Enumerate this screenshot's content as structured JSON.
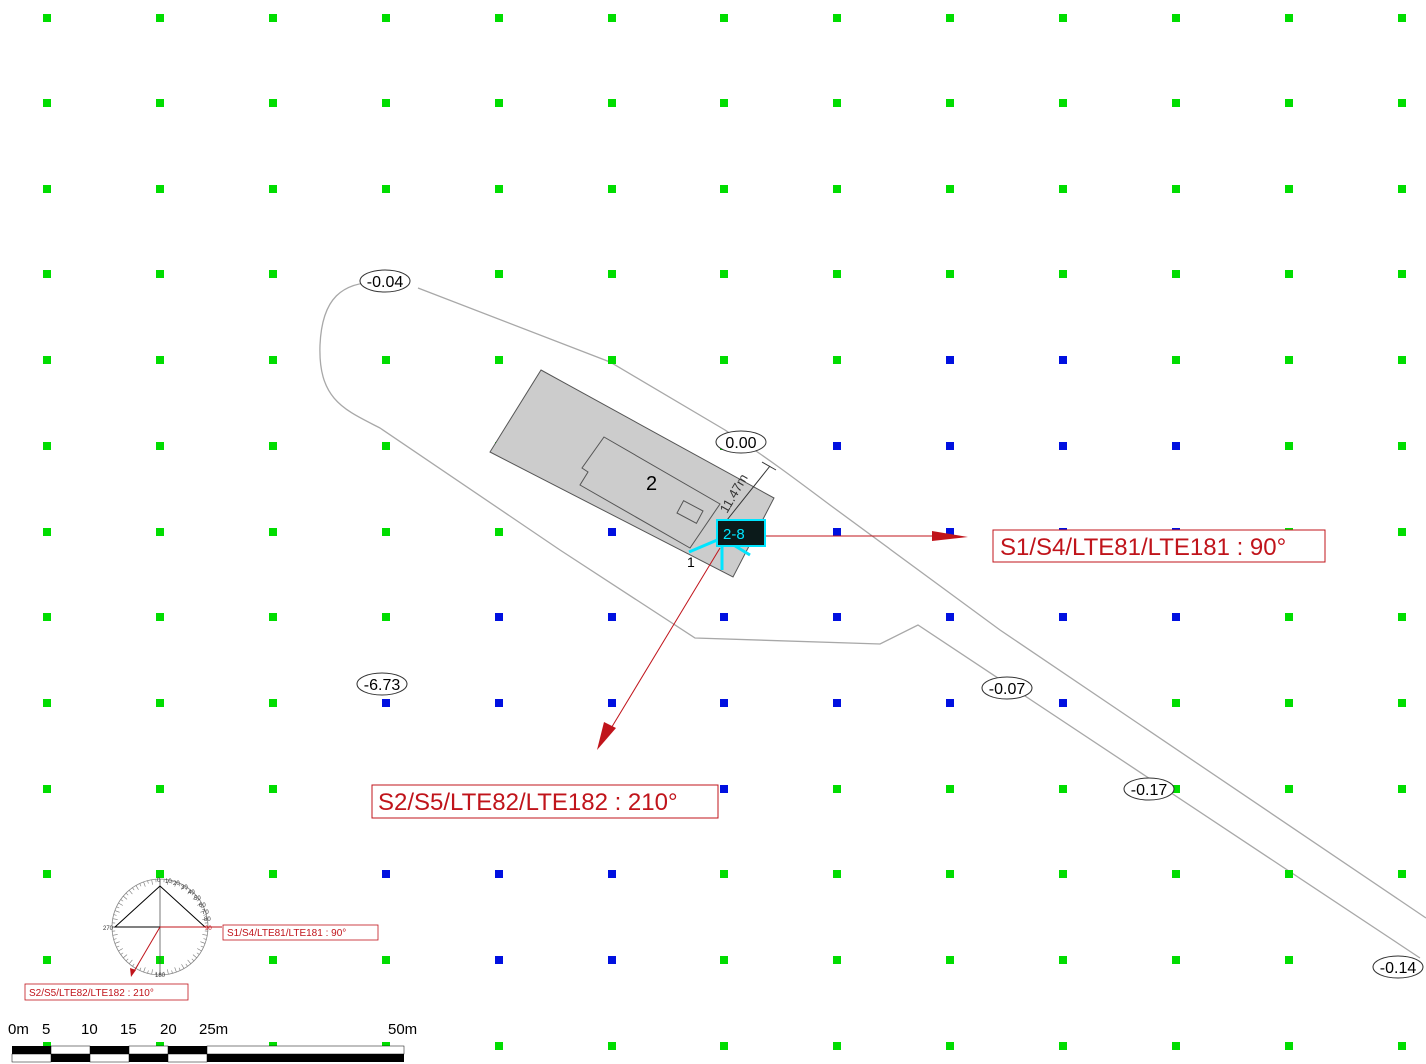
{
  "grid": {
    "legend": {
      "green": "#00dd00",
      "blue": "#0010e0"
    },
    "blue_points": [
      [
        8,
        4
      ],
      [
        9,
        4
      ],
      [
        7,
        5
      ],
      [
        8,
        5
      ],
      [
        9,
        5
      ],
      [
        10,
        5
      ],
      [
        5,
        6
      ],
      [
        7,
        6
      ],
      [
        8,
        6
      ],
      [
        9,
        6
      ],
      [
        10,
        6
      ],
      [
        4,
        7
      ],
      [
        5,
        7
      ],
      [
        6,
        7
      ],
      [
        7,
        7
      ],
      [
        8,
        7
      ],
      [
        9,
        7
      ],
      [
        10,
        7
      ],
      [
        3,
        8
      ],
      [
        4,
        8
      ],
      [
        5,
        8
      ],
      [
        6,
        8
      ],
      [
        7,
        8
      ],
      [
        8,
        8
      ],
      [
        9,
        8
      ],
      [
        4,
        9
      ],
      [
        5,
        9
      ],
      [
        6,
        9
      ],
      [
        3,
        10
      ],
      [
        4,
        10
      ],
      [
        5,
        10
      ],
      [
        4,
        11
      ],
      [
        5,
        11
      ]
    ]
  },
  "elevation_labels": [
    {
      "id": "elev-a",
      "text": "-0.04"
    },
    {
      "id": "elev-b",
      "text": "0.00"
    },
    {
      "id": "elev-c",
      "text": "-6.73"
    },
    {
      "id": "elev-d",
      "text": "-0.07"
    },
    {
      "id": "elev-e",
      "text": "-0.17"
    },
    {
      "id": "elev-f",
      "text": "-0.14"
    }
  ],
  "building": {
    "main_number": "2",
    "corner_number": "1",
    "dimension": "11.47m"
  },
  "site": {
    "label": "2-8"
  },
  "sectors": [
    {
      "id": "s1",
      "label": "S1/S4/LTE81/LTE181 : 90°",
      "azimuth": 90
    },
    {
      "id": "s2",
      "label": "S2/S5/LTE82/LTE182 : 210°",
      "azimuth": 210
    }
  ],
  "compass": {
    "ticks": [
      "0",
      "10",
      "20",
      "30",
      "40",
      "50",
      "60",
      "70",
      "80",
      "90",
      "180",
      "270"
    ],
    "sector_labels": [
      "S1/S4/LTE81/LTE181 : 90°",
      "S2/S5/LTE82/LTE182 : 210°"
    ]
  },
  "scale_bar": {
    "labels": [
      "0m",
      "5",
      "10",
      "15",
      "20",
      "25m",
      "50m"
    ]
  },
  "colors": {
    "sector_red": "#c0141b",
    "building_fill": "#cccccc",
    "site_cyan": "#00e5ff",
    "outline_gray": "#a8a8a8"
  }
}
